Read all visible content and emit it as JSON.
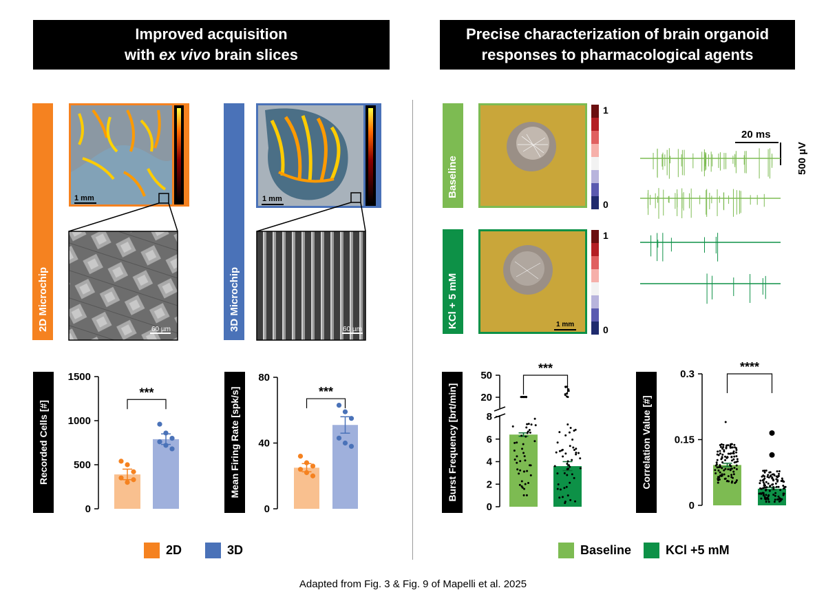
{
  "headers": {
    "left_line1": "Improved acquisition",
    "left_line2_em": "ex vivo",
    "left_line2_pre": "with ",
    "left_line2_post": " brain slices",
    "right_line1": "Precise characterization of brain organoid",
    "right_line2": "responses to pharmacological agents"
  },
  "labels": {
    "chip2d": "2D Microchip",
    "chip3d": "3D Microchip",
    "baseline": "Baseline",
    "kcl": "KCl + 5 mM",
    "scale_1mm": "1 mm",
    "scale_60um": "60 µm",
    "scale_20ms": "20 ms",
    "scale_500uv": "500 µV",
    "colorbar_max": "1",
    "colorbar_min": "0"
  },
  "colors": {
    "orange": "#f58220",
    "orange_light": "#f9c08f",
    "blue": "#4a72b8",
    "blue_light": "#9fb0dc",
    "green_light": "#7dbb52",
    "green_dark": "#0d9147",
    "tissue_bg": "#c9a63a"
  },
  "legends": {
    "left": [
      {
        "label": "2D",
        "color": "#f58220"
      },
      {
        "label": "3D",
        "color": "#4a72b8"
      }
    ],
    "right": [
      {
        "label": "Baseline",
        "color": "#7dbb52"
      },
      {
        "label": "KCl +5 mM",
        "color": "#0d9147"
      }
    ]
  },
  "caption": "Adapted from Fig. 3 & Fig. 9 of Mapelli et al. 2025",
  "chart_data": [
    {
      "type": "bar",
      "ylabel": "Recorded Cells [#]",
      "categories": [
        "2D",
        "3D"
      ],
      "values": [
        390,
        790
      ],
      "errors": [
        60,
        60
      ],
      "ylim": [
        0,
        1500
      ],
      "yticks": [
        "0",
        "500",
        "1000",
        "1500"
      ],
      "significance": "***",
      "points": [
        [
          540,
          500,
          420,
          350,
          300,
          330
        ],
        [
          960,
          860,
          800,
          760,
          720,
          680
        ]
      ]
    },
    {
      "type": "bar",
      "ylabel": "Mean Firing Rate [spk/s]",
      "categories": [
        "2D",
        "3D"
      ],
      "values": [
        25,
        51
      ],
      "errors": [
        2.5,
        5
      ],
      "ylim": [
        0,
        80
      ],
      "yticks": [
        "0",
        "40",
        "80"
      ],
      "significance": "***",
      "points": [
        [
          32,
          28,
          26,
          24,
          22,
          20
        ],
        [
          63,
          59,
          55,
          43,
          40,
          38
        ]
      ]
    },
    {
      "type": "bar",
      "ylabel": "Burst Frequency [brt/min]",
      "categories": [
        "Baseline",
        "KCl +5 mM"
      ],
      "values": [
        6.4,
        3.6
      ],
      "errors": [
        0.15,
        0.4
      ],
      "ylim": [
        0,
        50
      ],
      "axis_break": [
        8,
        17
      ],
      "yticks": [
        "0",
        "2",
        "4",
        "6",
        "8",
        "20",
        "50"
      ],
      "significance": "***"
    },
    {
      "type": "bar",
      "ylabel": "Correlation Value [#]",
      "categories": [
        "Baseline",
        "KCl +5 mM"
      ],
      "values": [
        0.092,
        0.038
      ],
      "errors": [
        0.004,
        0.003
      ],
      "ylim": [
        0,
        0.3
      ],
      "yticks": [
        "0",
        "0.15",
        "0.3"
      ],
      "significance": "****"
    }
  ]
}
